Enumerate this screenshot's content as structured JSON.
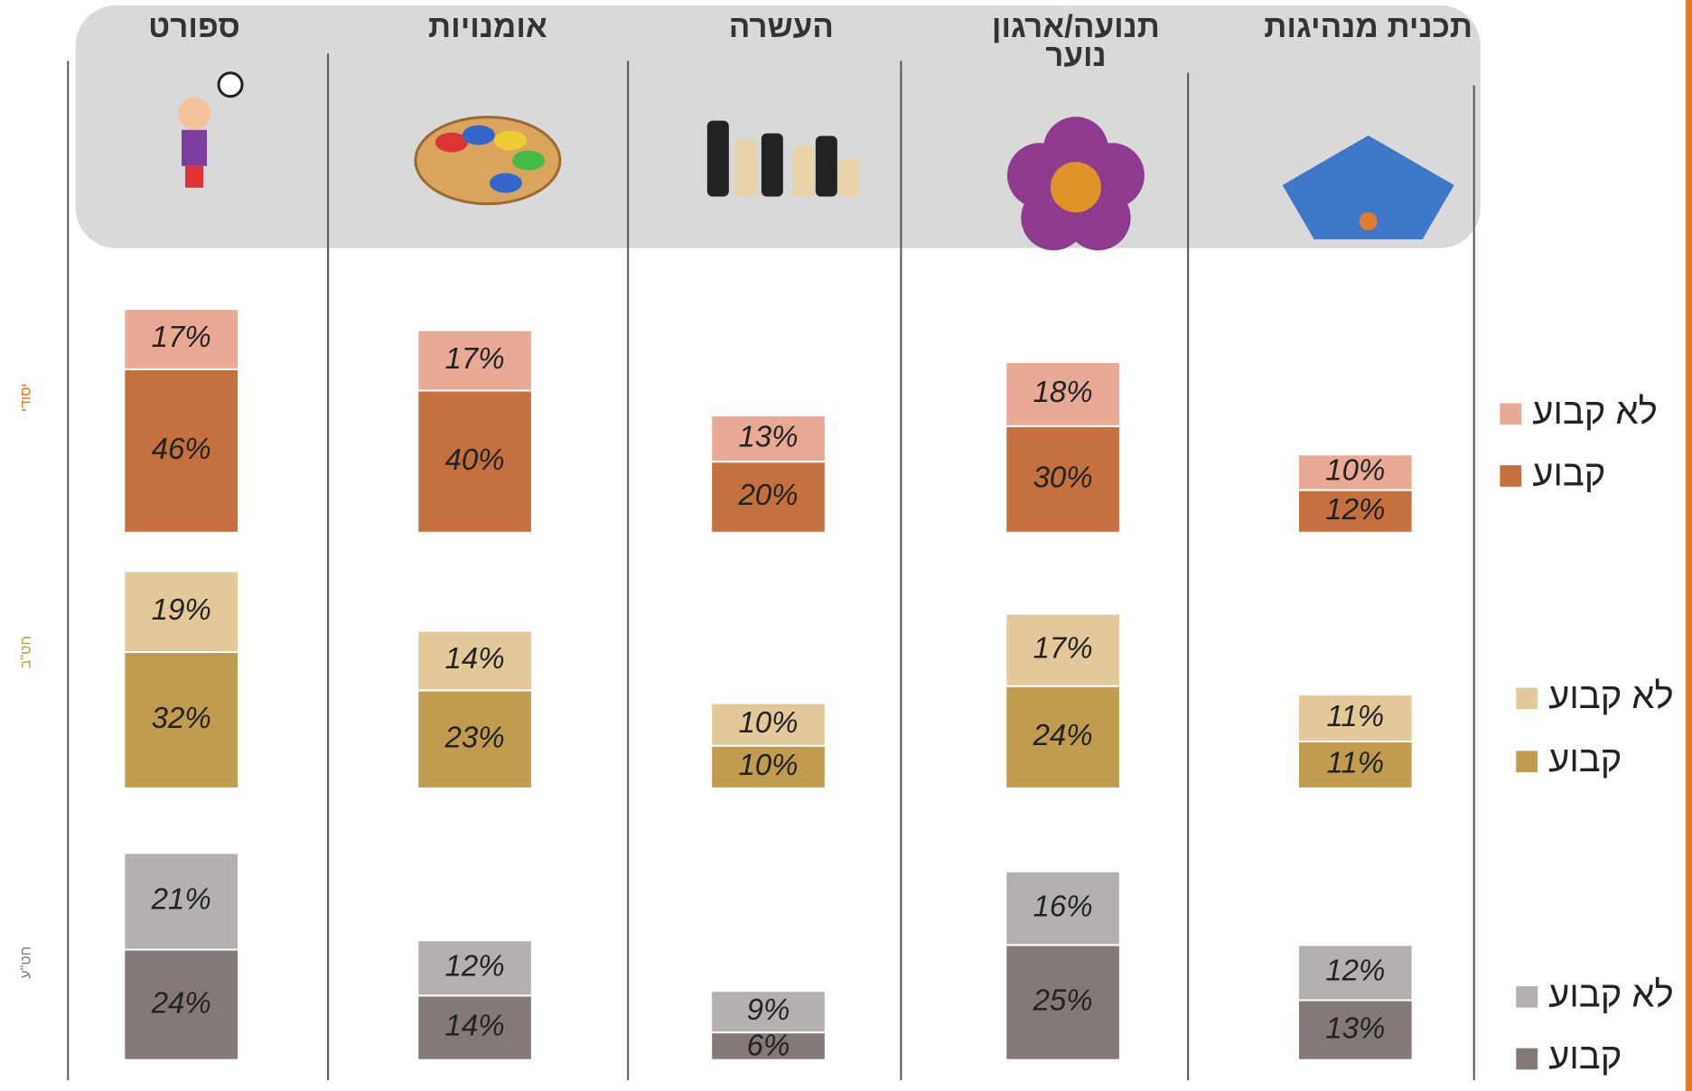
{
  "categories": [
    "ספורט",
    "אומנויות",
    "העשרה",
    "תנועה/ארגון נוער",
    "תכנית מנהיגות"
  ],
  "chart_data": [
    {
      "type": "bar",
      "stacked": true,
      "title": "יסודי",
      "title_color": "#f07020",
      "series": [
        {
          "name": "קבוע",
          "color": "#c5703f",
          "values": [
            46,
            40,
            20,
            30,
            12
          ],
          "value_labels": [
            "46%",
            "40%",
            "20%",
            "30%",
            "12%"
          ]
        },
        {
          "name": "לא קבוע",
          "color": "#e8aa94",
          "values": [
            17,
            17,
            13,
            18,
            10
          ],
          "value_labels": [
            "17%",
            "17%",
            "13%",
            "18%",
            "10%"
          ]
        }
      ]
    },
    {
      "type": "bar",
      "stacked": true,
      "title": "חט\"ב",
      "title_color": "#c09b50",
      "series": [
        {
          "name": "קבוע",
          "color": "#c09b50",
          "values": [
            32,
            23,
            10,
            24,
            11
          ],
          "value_labels": [
            "32%",
            "23%",
            "10%",
            "24%",
            "11%"
          ]
        },
        {
          "name": "לא קבוע",
          "color": "#e3c89a",
          "values": [
            19,
            14,
            10,
            17,
            11
          ],
          "value_labels": [
            "19%",
            "14%",
            "10%",
            "17%",
            "11%"
          ]
        }
      ]
    },
    {
      "type": "bar",
      "stacked": true,
      "title": "חט\"ע",
      "title_color": "#837a78",
      "series": [
        {
          "name": "קבוע",
          "color": "#837a78",
          "values": [
            24,
            14,
            6,
            25,
            13
          ],
          "value_labels": [
            "24%",
            "14%",
            "6%",
            "25%",
            "13%"
          ]
        },
        {
          "name": "לא קבוע",
          "color": "#b3b0af",
          "values": [
            21,
            12,
            9,
            16,
            12
          ],
          "value_labels": [
            "21%",
            "12%",
            "9%",
            "16%",
            "12%"
          ]
        }
      ]
    }
  ]
}
